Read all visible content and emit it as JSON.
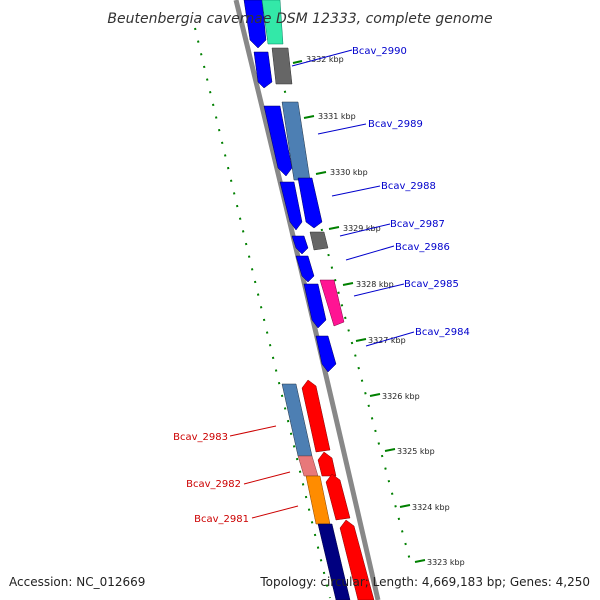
{
  "title": "Beutenbergia cavernae DSM 12333, complete genome",
  "footer": {
    "accession": "Accession: NC_012669",
    "topology": "Topology: circular; Length: 4,669,183 bp; Genes: 4,250"
  },
  "colors": {
    "forward_label": "#0000cc",
    "reverse_label": "#cc0000",
    "backbone": "#888888",
    "gc_dots": "#008000",
    "blue": "#0000ff",
    "steel_blue": "#4d7fb3",
    "dark_gray": "#666666",
    "teal": "#33cc99",
    "magenta": "#ff1493",
    "red": "#ff0000",
    "pink": "#e8787a",
    "orange": "#ff8c00",
    "navy": "#000080"
  },
  "ticks": [
    {
      "label": "3332 kbp"
    },
    {
      "label": "3331 kbp"
    },
    {
      "label": "3330 kbp"
    },
    {
      "label": "3329 kbp"
    },
    {
      "label": "3328 kbp"
    },
    {
      "label": "3327 kbp"
    },
    {
      "label": "3326 kbp"
    },
    {
      "label": "3325 kbp"
    },
    {
      "label": "3324 kbp"
    },
    {
      "label": "3323 kbp"
    }
  ],
  "gene_labels": [
    {
      "name": "Bcav_2990",
      "strand": "forward"
    },
    {
      "name": "Bcav_2989",
      "strand": "forward"
    },
    {
      "name": "Bcav_2988",
      "strand": "forward"
    },
    {
      "name": "Bcav_2987",
      "strand": "forward"
    },
    {
      "name": "Bcav_2986",
      "strand": "forward"
    },
    {
      "name": "Bcav_2985",
      "strand": "forward"
    },
    {
      "name": "Bcav_2984",
      "strand": "forward"
    },
    {
      "name": "Bcav_2983",
      "strand": "reverse"
    },
    {
      "name": "Bcav_2982",
      "strand": "reverse"
    },
    {
      "name": "Bcav_2981",
      "strand": "reverse"
    }
  ]
}
